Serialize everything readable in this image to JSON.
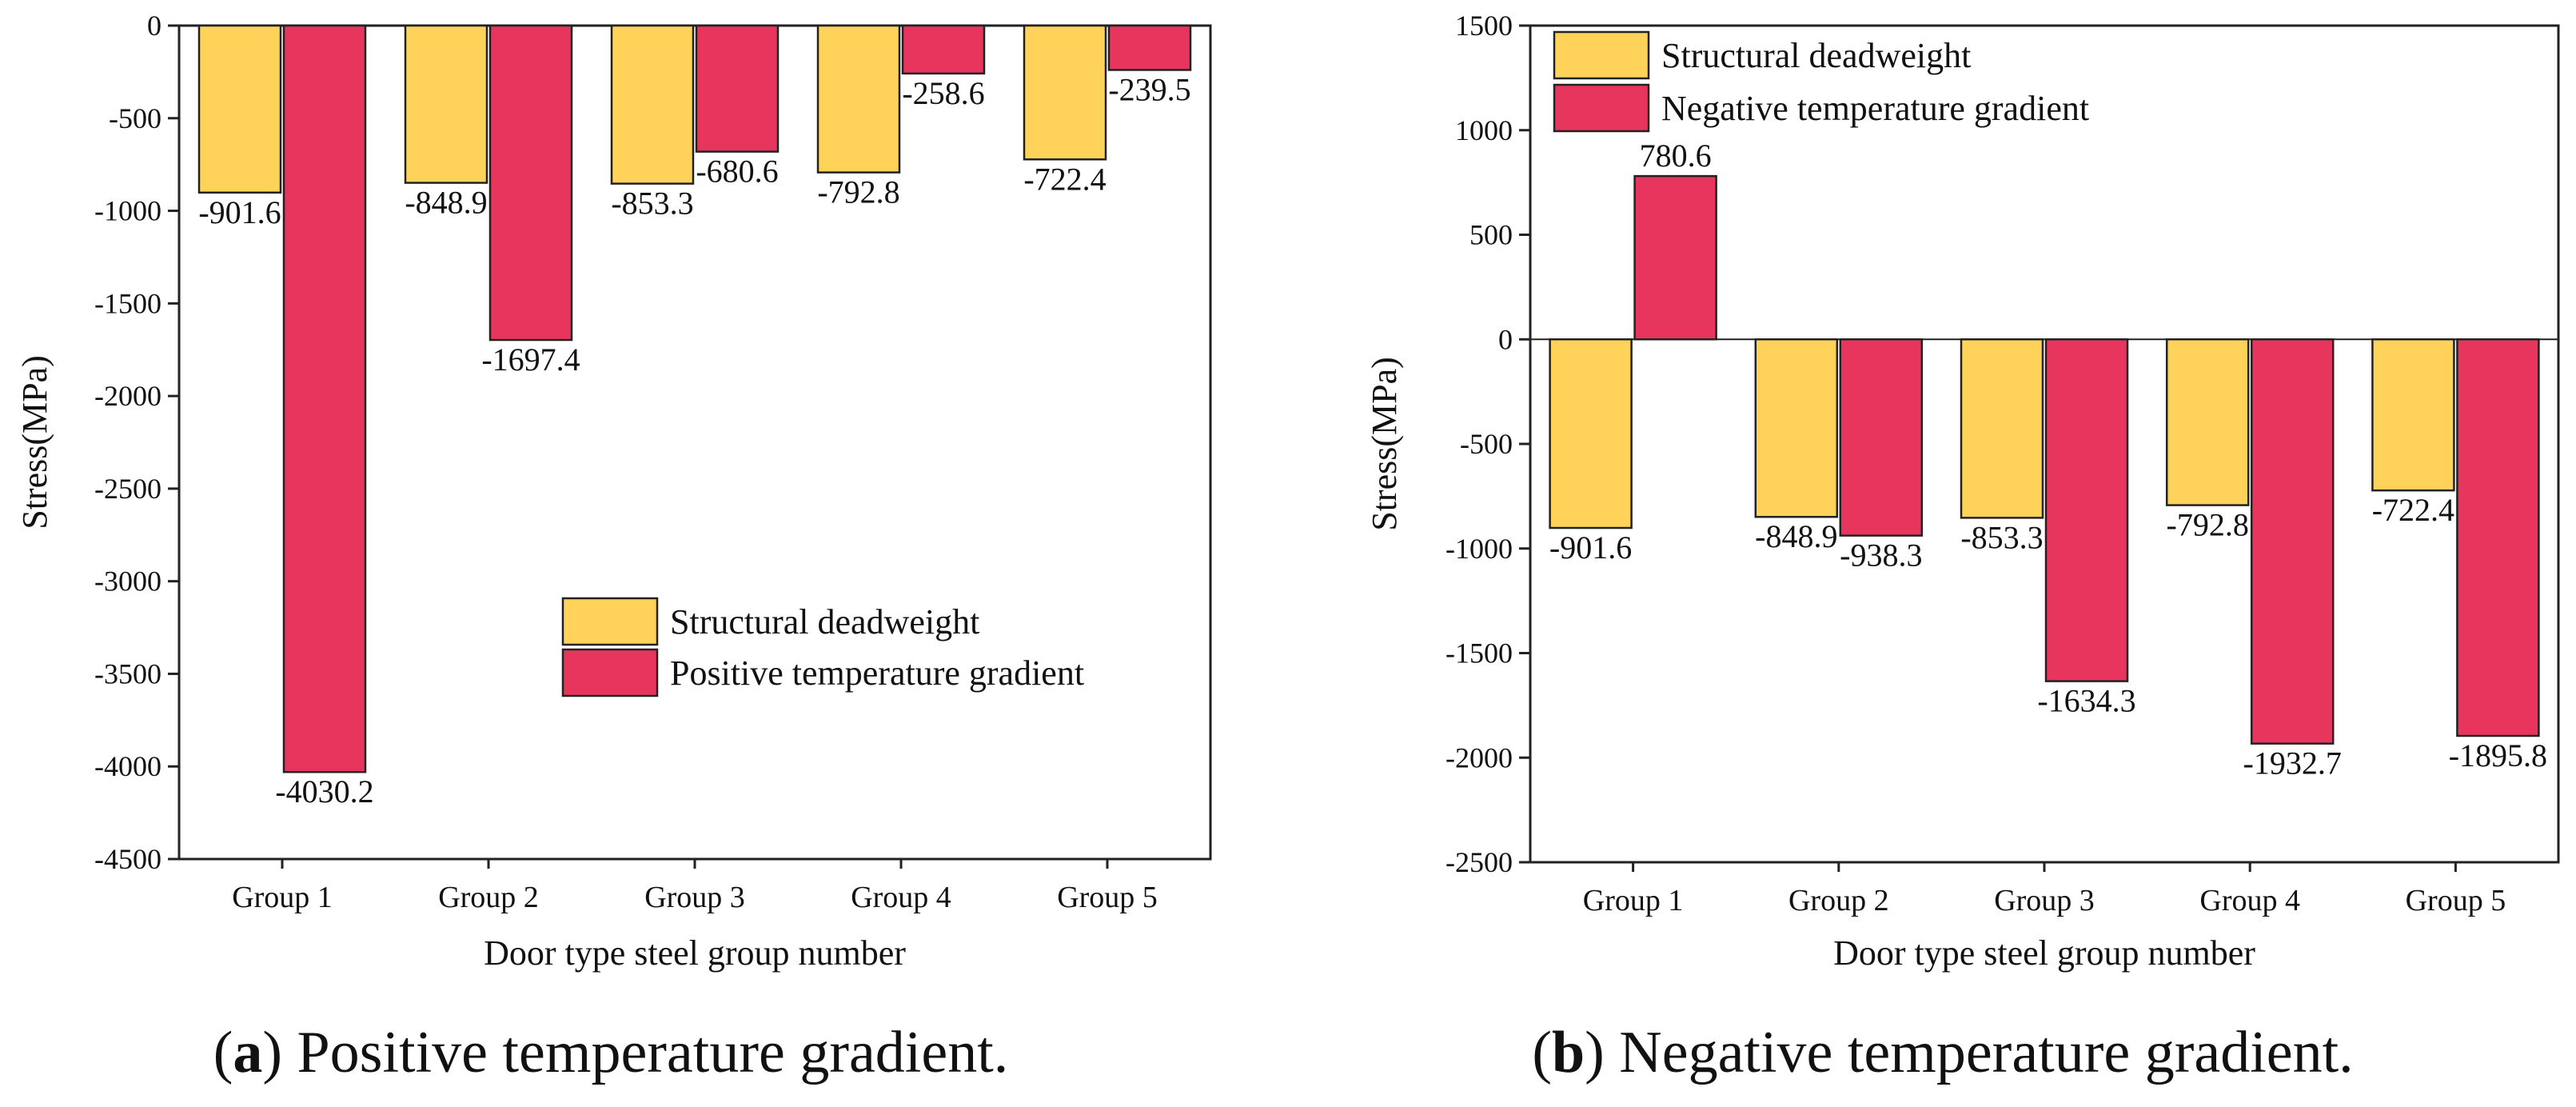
{
  "colors": {
    "deadweight": "#FFD35A",
    "gradient": "#E8355E",
    "axis": "#222222"
  },
  "chart_data": [
    {
      "type": "bar",
      "title": "",
      "xlabel": "Door type steel group number",
      "ylabel": "Stress(MPa)",
      "ylim": [
        -4500,
        0
      ],
      "yticks": [
        0,
        -500,
        -1000,
        -1500,
        -2000,
        -2500,
        -3000,
        -3500,
        -4000,
        -4500
      ],
      "categories": [
        "Group 1",
        "Group 2",
        "Group 3",
        "Group 4",
        "Group 5"
      ],
      "series": [
        {
          "name": "Structural deadweight",
          "values": [
            -901.6,
            -848.9,
            -853.3,
            -792.8,
            -722.4
          ]
        },
        {
          "name": "Positive temperature gradient",
          "values": [
            -4030.2,
            -1697.4,
            -680.6,
            -258.6,
            -239.5
          ]
        }
      ],
      "legend": "bottom-right",
      "caption_letter": "a",
      "caption_text": "Positive temperature gradient."
    },
    {
      "type": "bar",
      "title": "",
      "xlabel": "Door type steel group number",
      "ylabel": "Stress(MPa)",
      "ylim": [
        -2500,
        1500
      ],
      "yticks": [
        1500,
        1000,
        500,
        0,
        -500,
        -1000,
        -1500,
        -2000,
        -2500
      ],
      "categories": [
        "Group 1",
        "Group 2",
        "Group 3",
        "Group 4",
        "Group 5"
      ],
      "series": [
        {
          "name": "Structural deadweight",
          "values": [
            -901.6,
            -848.9,
            -853.3,
            -792.8,
            -722.4
          ]
        },
        {
          "name": "Negative temperature gradient",
          "values": [
            780.6,
            -938.3,
            -1634.3,
            -1932.7,
            -1895.8
          ]
        }
      ],
      "legend": "top-left",
      "caption_letter": "b",
      "caption_text": "Negative temperature gradient."
    }
  ]
}
